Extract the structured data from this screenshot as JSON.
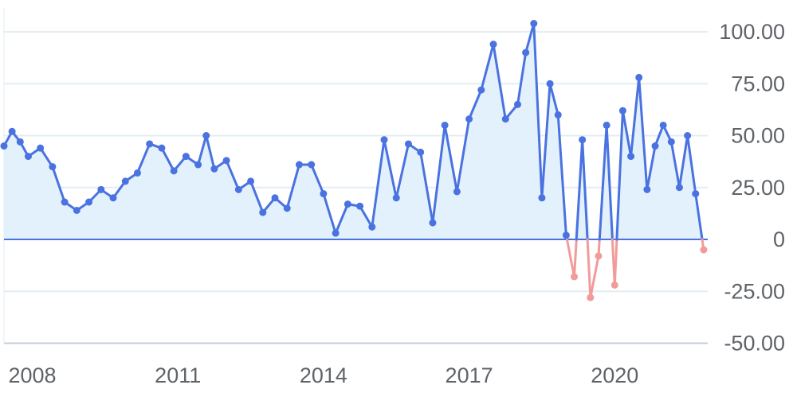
{
  "chart_data": {
    "type": "line",
    "title": "",
    "xlabel": "",
    "ylabel": "",
    "x_ticks": [
      "2008",
      "2011",
      "2014",
      "2017",
      "2020"
    ],
    "y_ticks": [
      "100.00",
      "75.00",
      "50.00",
      "25.00",
      "0",
      "-25.00",
      "-50.00"
    ],
    "ylim": [
      -50,
      100
    ],
    "xlim": [
      "2007-06",
      "2021-12"
    ],
    "grid": true,
    "legend": "none",
    "series": [
      {
        "values": [
          [
            "2007-06",
            45
          ],
          [
            "2007-08",
            52
          ],
          [
            "2007-10",
            47
          ],
          [
            "2007-12",
            40
          ],
          [
            "2008-03",
            44
          ],
          [
            "2008-06",
            35
          ],
          [
            "2008-09",
            18
          ],
          [
            "2008-12",
            14
          ],
          [
            "2009-03",
            18
          ],
          [
            "2009-06",
            24
          ],
          [
            "2009-09",
            20
          ],
          [
            "2009-12",
            28
          ],
          [
            "2010-03",
            32
          ],
          [
            "2010-06",
            46
          ],
          [
            "2010-09",
            44
          ],
          [
            "2010-12",
            33
          ],
          [
            "2011-03",
            40
          ],
          [
            "2011-06",
            36
          ],
          [
            "2011-08",
            50
          ],
          [
            "2011-10",
            34
          ],
          [
            "2012-01",
            38
          ],
          [
            "2012-04",
            24
          ],
          [
            "2012-07",
            28
          ],
          [
            "2012-10",
            13
          ],
          [
            "2013-01",
            20
          ],
          [
            "2013-04",
            15
          ],
          [
            "2013-07",
            36
          ],
          [
            "2013-10",
            36
          ],
          [
            "2014-01",
            22
          ],
          [
            "2014-04",
            3
          ],
          [
            "2014-07",
            17
          ],
          [
            "2014-10",
            16
          ],
          [
            "2015-01",
            6
          ],
          [
            "2015-04",
            48
          ],
          [
            "2015-07",
            20
          ],
          [
            "2015-10",
            46
          ],
          [
            "2016-01",
            42
          ],
          [
            "2016-04",
            8
          ],
          [
            "2016-07",
            55
          ],
          [
            "2016-10",
            23
          ],
          [
            "2017-01",
            58
          ],
          [
            "2017-04",
            72
          ],
          [
            "2017-07",
            94
          ],
          [
            "2017-10",
            58
          ],
          [
            "2018-01",
            65
          ],
          [
            "2018-03",
            90
          ],
          [
            "2018-05",
            104
          ],
          [
            "2018-07",
            20
          ],
          [
            "2018-09",
            75
          ],
          [
            "2018-11",
            60
          ],
          [
            "2019-01",
            2
          ],
          [
            "2019-03",
            -18
          ],
          [
            "2019-05",
            48
          ],
          [
            "2019-07",
            -28
          ],
          [
            "2019-09",
            -8
          ],
          [
            "2019-11",
            55
          ],
          [
            "2020-01",
            -22
          ],
          [
            "2020-03",
            62
          ],
          [
            "2020-05",
            40
          ],
          [
            "2020-07",
            78
          ],
          [
            "2020-09",
            24
          ],
          [
            "2020-11",
            45
          ],
          [
            "2021-01",
            55
          ],
          [
            "2021-03",
            47
          ],
          [
            "2021-05",
            25
          ],
          [
            "2021-07",
            50
          ],
          [
            "2021-09",
            22
          ],
          [
            "2021-11",
            -5
          ]
        ]
      }
    ],
    "colors": {
      "line": "#4a72e0",
      "negative": "#f29b9b",
      "fill": "#e3f1fc",
      "grid": "#e3edf2",
      "zero_line": "#4a72e0",
      "bottom_axis": "#c5cdd6",
      "tick_text": "#5f6368"
    }
  }
}
